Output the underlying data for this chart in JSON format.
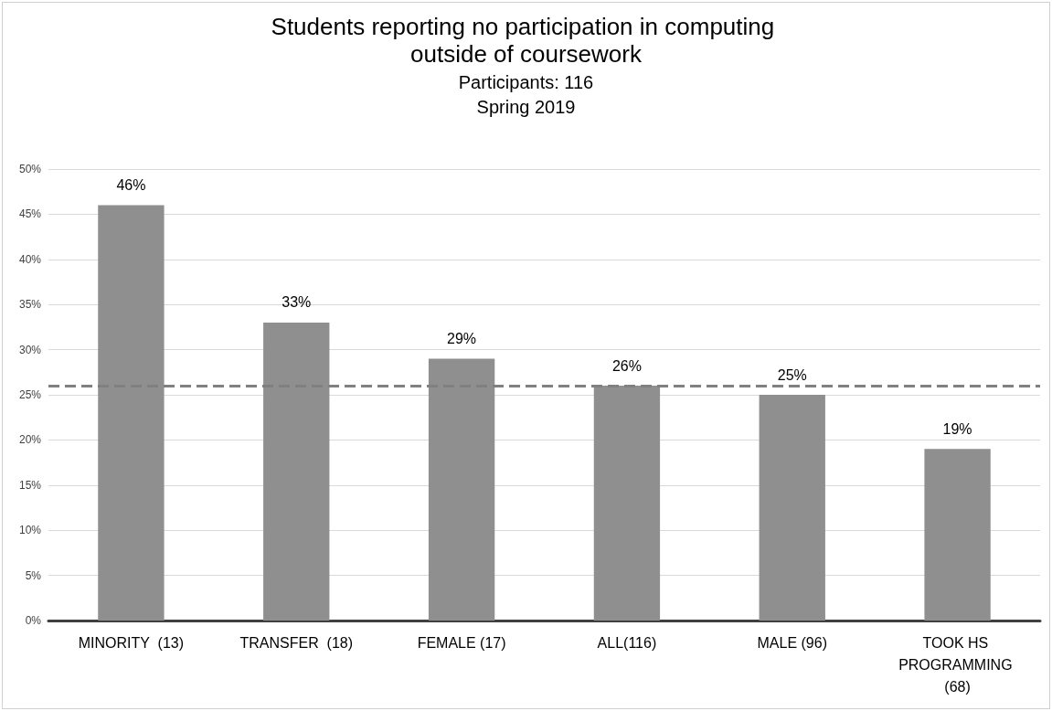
{
  "chart_data": {
    "type": "bar",
    "title": "Students reporting no participation in computing outside of coursework",
    "subtitle": "Participants: 116\nSpring 2019",
    "categories": [
      "MINORITY  (13)",
      "TRANSFER  (18)",
      "FEMALE (17)",
      "ALL(116)",
      "MALE (96)",
      "TOOK HS PROGRAMMING (68)"
    ],
    "values": [
      46,
      33,
      29,
      26,
      25,
      19
    ],
    "color": "#8f8f8f",
    "value_labels": [
      "46%",
      "33%",
      "29%",
      "26%",
      "25%",
      "19%"
    ],
    "ylim": [
      0,
      50
    ],
    "yticks": [
      {
        "value": 0,
        "label": "0%"
      },
      {
        "value": 5,
        "label": "5%"
      },
      {
        "value": 10,
        "label": "10%"
      },
      {
        "value": 15,
        "label": "15%"
      },
      {
        "value": 20,
        "label": "20%"
      },
      {
        "value": 25,
        "label": "25%"
      },
      {
        "value": 30,
        "label": "30%"
      },
      {
        "value": 35,
        "label": "35%"
      },
      {
        "value": 40,
        "label": "40%"
      },
      {
        "value": 45,
        "label": "45%"
      },
      {
        "value": 50,
        "label": "50%"
      }
    ],
    "grid": "y",
    "ref_lines": [
      {
        "axis": "y",
        "value": 26,
        "color": "#808080",
        "line_style": "dashed"
      }
    ]
  }
}
